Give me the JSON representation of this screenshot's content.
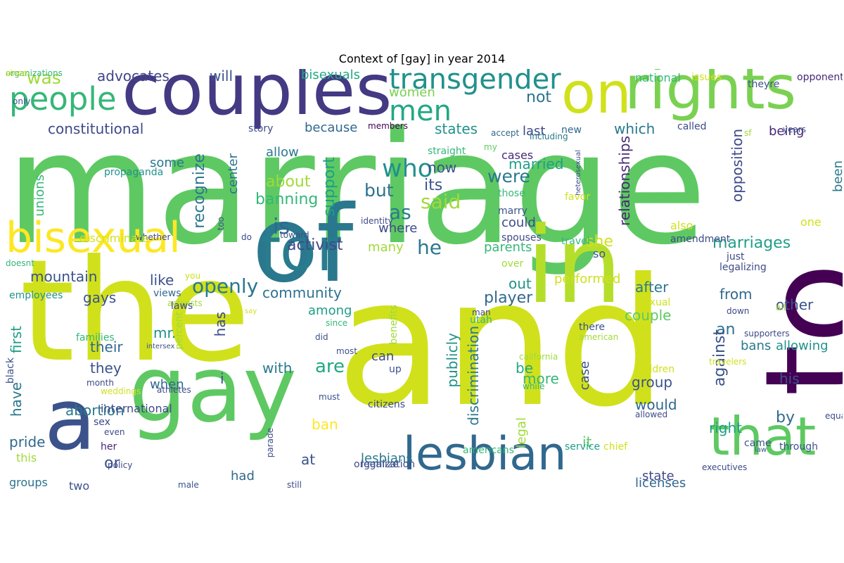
{
  "title": "Context of [gay] in year 2014",
  "words": [
    {
      "text": "marriage",
      "color": "#5ec962"
    },
    {
      "text": "and",
      "color": "#d0e11c"
    },
    {
      "text": "the",
      "color": "#d0e11c"
    },
    {
      "text": "to",
      "color": "#440154"
    },
    {
      "text": "couples",
      "color": "#443983"
    },
    {
      "text": "of",
      "color": "#2a788e"
    },
    {
      "text": "in",
      "color": "#b5de2b"
    },
    {
      "text": "gay",
      "color": "#5ec962"
    },
    {
      "text": "a",
      "color": "#3b528b"
    },
    {
      "text": "rights",
      "color": "#7ad151"
    },
    {
      "text": "on",
      "color": "#d0e11c"
    },
    {
      "text": "for",
      "color": "#287c8e"
    },
    {
      "text": "lesbian",
      "color": "#31688e"
    },
    {
      "text": "that",
      "color": "#5ec962"
    },
    {
      "text": "bisexual",
      "color": "#fde725"
    },
    {
      "text": "people",
      "color": "#35b779"
    },
    {
      "text": "transgender",
      "color": "#21918c"
    },
    {
      "text": "men",
      "color": "#22a884"
    },
    {
      "text": "was",
      "color": "#a0da39"
    },
    {
      "text": "advocates",
      "color": "#414487"
    },
    {
      "text": "will",
      "color": "#3b528b"
    },
    {
      "text": "bisexuals",
      "color": "#22a884"
    },
    {
      "text": "women",
      "color": "#7ad151"
    },
    {
      "text": "constitutional",
      "color": "#3e4a89"
    },
    {
      "text": "because",
      "color": "#31688e"
    },
    {
      "text": "states",
      "color": "#21918c"
    },
    {
      "text": "which",
      "color": "#2a788e"
    },
    {
      "text": "not",
      "color": "#2c728e"
    },
    {
      "text": "who",
      "color": "#21918c"
    },
    {
      "text": "married",
      "color": "#1f9e89"
    },
    {
      "text": "were",
      "color": "#2a788e"
    },
    {
      "text": "but",
      "color": "#2c728e"
    },
    {
      "text": "its",
      "color": "#3b528b"
    },
    {
      "text": "said",
      "color": "#a0da39"
    },
    {
      "text": "as",
      "color": "#287c8e"
    },
    {
      "text": "is",
      "color": "#31688e"
    },
    {
      "text": "where",
      "color": "#3e4a89"
    },
    {
      "text": "he",
      "color": "#2a788e"
    },
    {
      "text": "about",
      "color": "#a0da39"
    },
    {
      "text": "banning",
      "color": "#35b779"
    },
    {
      "text": "support",
      "color": "#1f9e89"
    },
    {
      "text": "now",
      "color": "#3b528b"
    },
    {
      "text": "could",
      "color": "#3e4a89"
    },
    {
      "text": "recognize",
      "color": "#2a788e"
    },
    {
      "text": "center",
      "color": "#2c728e"
    },
    {
      "text": "relationships",
      "color": "#482878"
    },
    {
      "text": "opposition",
      "color": "#3e4a89"
    },
    {
      "text": "marriages",
      "color": "#1f9e89"
    },
    {
      "text": "she",
      "color": "#d0e11c"
    },
    {
      "text": "activist",
      "color": "#3e4a89"
    },
    {
      "text": "many",
      "color": "#a0da39"
    },
    {
      "text": "parents",
      "color": "#35b779"
    },
    {
      "text": "openly",
      "color": "#2a788e"
    },
    {
      "text": "community",
      "color": "#2c728e"
    },
    {
      "text": "mountain",
      "color": "#3b528b"
    },
    {
      "text": "like",
      "color": "#3b528b"
    },
    {
      "text": "out",
      "color": "#21918c"
    },
    {
      "text": "player",
      "color": "#31688e"
    },
    {
      "text": "after",
      "color": "#2a788e"
    },
    {
      "text": "from",
      "color": "#31688e"
    },
    {
      "text": "other",
      "color": "#3b528b"
    },
    {
      "text": "gays",
      "color": "#3b528b"
    },
    {
      "text": "among",
      "color": "#1f9e89"
    },
    {
      "text": "couple",
      "color": "#5ec962"
    },
    {
      "text": "an",
      "color": "#2c728e"
    },
    {
      "text": "against",
      "color": "#3b528b"
    },
    {
      "text": "bans",
      "color": "#2a788e"
    },
    {
      "text": "allowing",
      "color": "#21918c"
    },
    {
      "text": "mr.",
      "color": "#21918c"
    },
    {
      "text": "has",
      "color": "#3e4a89"
    },
    {
      "text": "first",
      "color": "#1f9e89"
    },
    {
      "text": "their",
      "color": "#31688e"
    },
    {
      "text": "they",
      "color": "#3b528b"
    },
    {
      "text": "with",
      "color": "#2a788e"
    },
    {
      "text": "are",
      "color": "#22a884"
    },
    {
      "text": "can",
      "color": "#3e4a89"
    },
    {
      "text": "be",
      "color": "#22a884"
    },
    {
      "text": "more",
      "color": "#35b779"
    },
    {
      "text": "publicly",
      "color": "#21918c"
    },
    {
      "text": "discrimination",
      "color": "#2a788e"
    },
    {
      "text": "group",
      "color": "#3b528b"
    },
    {
      "text": "would",
      "color": "#31688e"
    },
    {
      "text": "his",
      "color": "#3b528b"
    },
    {
      "text": "by",
      "color": "#31688e"
    },
    {
      "text": "have",
      "color": "#2a788e"
    },
    {
      "text": "when",
      "color": "#31688e"
    },
    {
      "text": "i",
      "color": "#3b528b"
    },
    {
      "text": "abortion",
      "color": "#2a788e"
    },
    {
      "text": "pride",
      "color": "#31688e"
    },
    {
      "text": "ban",
      "color": "#fde725"
    },
    {
      "text": "at",
      "color": "#3b528b"
    },
    {
      "text": "lesbians",
      "color": "#2a788e"
    },
    {
      "text": "legal",
      "color": "#a0da39"
    },
    {
      "text": "it",
      "color": "#5ec962"
    },
    {
      "text": "right",
      "color": "#1f9e89"
    },
    {
      "text": "or",
      "color": "#3b528b"
    },
    {
      "text": "had",
      "color": "#31688e"
    },
    {
      "text": "state",
      "color": "#3e4a89"
    },
    {
      "text": "licenses",
      "color": "#31688e"
    },
    {
      "text": "groups",
      "color": "#2c728e"
    },
    {
      "text": "this",
      "color": "#a0da39"
    },
    {
      "text": "two",
      "color": "#3b528b"
    },
    {
      "text": "unions",
      "color": "#35b779"
    },
    {
      "text": "some",
      "color": "#2a788e"
    },
    {
      "text": "allow",
      "color": "#2a788e"
    },
    {
      "text": "straight",
      "color": "#35b779"
    },
    {
      "text": "cases",
      "color": "#482878"
    },
    {
      "text": "last",
      "color": "#3e4a89"
    },
    {
      "text": "being",
      "color": "#482878"
    },
    {
      "text": "been",
      "color": "#2a788e"
    },
    {
      "text": "one",
      "color": "#d0e11c"
    },
    {
      "text": "also",
      "color": "#d0e11c"
    },
    {
      "text": "national",
      "color": "#35b779"
    },
    {
      "text": "issues",
      "color": "#d0e11c"
    },
    {
      "text": "opponents",
      "color": "#482878"
    },
    {
      "text": "theyre",
      "color": "#3b528b"
    },
    {
      "text": "called",
      "color": "#3e4a89"
    },
    {
      "text": "new",
      "color": "#31688e"
    },
    {
      "text": "accept",
      "color": "#31688e"
    },
    {
      "text": "story",
      "color": "#3e4a89"
    },
    {
      "text": "members",
      "color": "#440154"
    },
    {
      "text": "including",
      "color": "#2a788e"
    },
    {
      "text": "my",
      "color": "#5ec962"
    },
    {
      "text": "heterosexual",
      "color": "#3e4a89"
    },
    {
      "text": "sf",
      "color": "#a0da39"
    },
    {
      "text": "years",
      "color": "#3b528b"
    },
    {
      "text": "only",
      "color": "#3b528b"
    },
    {
      "text": "propaganda",
      "color": "#21918c"
    },
    {
      "text": "toward",
      "color": "#3b528b"
    },
    {
      "text": "identity",
      "color": "#3e4a89"
    },
    {
      "text": "too",
      "color": "#3b528b"
    },
    {
      "text": "do",
      "color": "#3e4a89"
    },
    {
      "text": "whether",
      "color": "#3e4a89"
    },
    {
      "text": "discriminate",
      "color": "#d0e11c"
    },
    {
      "text": "those",
      "color": "#35b779"
    },
    {
      "text": "favor",
      "color": "#d0e11c"
    },
    {
      "text": "marry",
      "color": "#3b528b"
    },
    {
      "text": "spouses",
      "color": "#3e4a89"
    },
    {
      "text": "travel",
      "color": "#35b779"
    },
    {
      "text": "amendment",
      "color": "#3e4a89"
    },
    {
      "text": "so",
      "color": "#3b528b"
    },
    {
      "text": "over",
      "color": "#a0da39"
    },
    {
      "text": "just",
      "color": "#3e4a89"
    },
    {
      "text": "legalizing",
      "color": "#3e4a89"
    },
    {
      "text": "performed",
      "color": "#d0e11c"
    },
    {
      "text": "sexual",
      "color": "#d0e11c"
    },
    {
      "text": "down",
      "color": "#3e4a89"
    },
    {
      "text": "all",
      "color": "#a0da39"
    },
    {
      "text": "you",
      "color": "#d0e11c"
    },
    {
      "text": "doesnt",
      "color": "#35b779"
    },
    {
      "text": "employees",
      "color": "#21918c"
    },
    {
      "text": "activists",
      "color": "#a0da39"
    },
    {
      "text": "laws",
      "color": "#3e4a89"
    },
    {
      "text": "views",
      "color": "#31688e"
    },
    {
      "text": "percent",
      "color": "#a0da39"
    },
    {
      "text": "benefits",
      "color": "#a0da39"
    },
    {
      "text": "man",
      "color": "#3e4a89"
    },
    {
      "text": "utah",
      "color": "#35b779"
    },
    {
      "text": "there",
      "color": "#3b528b"
    },
    {
      "text": "american",
      "color": "#a0da39"
    },
    {
      "text": "supporters",
      "color": "#3e4a89"
    },
    {
      "text": "since",
      "color": "#35b779"
    },
    {
      "text": "say",
      "color": "#d0e11c"
    },
    {
      "text": "did",
      "color": "#3b528b"
    },
    {
      "text": "families",
      "color": "#35b779"
    },
    {
      "text": "intersex",
      "color": "#3b528b"
    },
    {
      "text": "most",
      "color": "#3b528b"
    },
    {
      "text": "california",
      "color": "#a0da39"
    },
    {
      "text": "travelers",
      "color": "#d0e11c"
    },
    {
      "text": "black",
      "color": "#3b528b"
    },
    {
      "text": "month",
      "color": "#3e4a89"
    },
    {
      "text": "weddings",
      "color": "#d0e11c"
    },
    {
      "text": "international",
      "color": "#3e4a89"
    },
    {
      "text": "athletes",
      "color": "#3e4a89"
    },
    {
      "text": "up",
      "color": "#3b528b"
    },
    {
      "text": "case",
      "color": "#3b528b"
    },
    {
      "text": "children",
      "color": "#d0e11c"
    },
    {
      "text": "while",
      "color": "#35b779"
    },
    {
      "text": "must",
      "color": "#3b528b"
    },
    {
      "text": "citizens",
      "color": "#3e4a89"
    },
    {
      "text": "sex",
      "color": "#3e4a89"
    },
    {
      "text": "even",
      "color": "#3e4a89"
    },
    {
      "text": "allowed",
      "color": "#3e4a89"
    },
    {
      "text": "equality",
      "color": "#3e4a89"
    },
    {
      "text": "through",
      "color": "#3b528b"
    },
    {
      "text": "her",
      "color": "#482878"
    },
    {
      "text": "parade",
      "color": "#3e4a89"
    },
    {
      "text": "service",
      "color": "#1f9e89"
    },
    {
      "text": "chief",
      "color": "#d0e11c"
    },
    {
      "text": "came",
      "color": "#3b528b"
    },
    {
      "text": "law",
      "color": "#3b528b"
    },
    {
      "text": "americans",
      "color": "#35b779"
    },
    {
      "text": "organization",
      "color": "#3e4a89"
    },
    {
      "text": "policy",
      "color": "#3e4a89"
    },
    {
      "text": "legalize",
      "color": "#3b528b"
    },
    {
      "text": "male",
      "color": "#3b528b"
    },
    {
      "text": "still",
      "color": "#3e4a89"
    },
    {
      "text": "executives",
      "color": "#3e4a89"
    },
    {
      "text": "organizations",
      "color": "#35b779"
    },
    {
      "text": "since",
      "color": "#d0e11c"
    }
  ]
}
